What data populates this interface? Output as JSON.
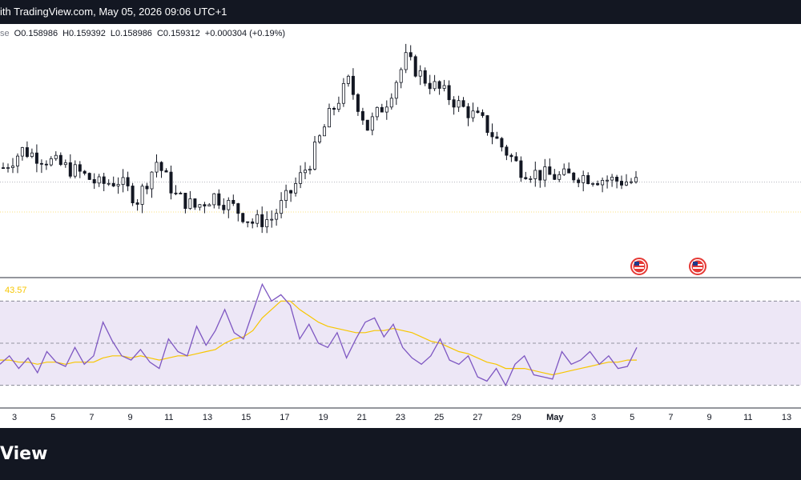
{
  "header": {
    "title": "ith TradingView.com, May 05, 2026 09:06 UTC+1"
  },
  "legend": {
    "prefix": "se",
    "open_key": "O",
    "open": "0.158986",
    "high_key": "H",
    "high": "0.159392",
    "low_key": "L",
    "low": "0.158986",
    "close_key": "C",
    "close": "0.159312",
    "change": "+0.000304 (+0.19%)"
  },
  "rsi": {
    "value_label": "43.57"
  },
  "footer": {
    "brand": "View"
  },
  "colors": {
    "up": "#131722",
    "down": "#131722",
    "rsi_line": "#7e57c2",
    "rsi_ma": "#f7c600",
    "rsi_band": "#ede7f6",
    "background": "#ffffff",
    "bar": "#131722"
  },
  "icons": [
    "us-flag-icon",
    "us-flag-icon"
  ],
  "chart_data": [
    {
      "type": "candlestick",
      "title": "",
      "ylim": [
        0.148,
        0.178
      ],
      "dates": [
        "2",
        "3",
        "4",
        "5",
        "6",
        "7",
        "8",
        "9",
        "10",
        "11",
        "12",
        "13",
        "14",
        "15",
        "16",
        "17",
        "18",
        "19",
        "20",
        "21",
        "22",
        "23",
        "24",
        "25",
        "26",
        "27",
        "28",
        "29",
        "30",
        "May",
        "2",
        "3",
        "4",
        "5"
      ],
      "close": [
        0.1612,
        0.1635,
        0.1625,
        0.1615,
        0.1605,
        0.159,
        0.1595,
        0.157,
        0.162,
        0.1575,
        0.156,
        0.1575,
        0.156,
        0.154,
        0.1545,
        0.158,
        0.162,
        0.168,
        0.1725,
        0.1665,
        0.17,
        0.1755,
        0.1728,
        0.171,
        0.169,
        0.1672,
        0.164,
        0.161,
        0.1603,
        0.16,
        0.1602,
        0.1598,
        0.1595,
        0.1593
      ],
      "x_ticks": [
        "3",
        "5",
        "7",
        "9",
        "11",
        "13",
        "15",
        "17",
        "19",
        "21",
        "23",
        "25",
        "27",
        "29",
        "May",
        "3",
        "5",
        "7",
        "9",
        "11",
        "13"
      ]
    },
    {
      "type": "line",
      "title": "",
      "ylim": [
        20,
        80
      ],
      "bands": [
        30,
        50,
        70
      ],
      "series": [
        {
          "name": "",
          "values": [
            40,
            44,
            38,
            43,
            36,
            46,
            41,
            39,
            48,
            40,
            44,
            60,
            51,
            44,
            42,
            47,
            41,
            38,
            52,
            46,
            44,
            58,
            49,
            56,
            66,
            55,
            52,
            65,
            78,
            70,
            73,
            68,
            52,
            59,
            50,
            48,
            55,
            43,
            52,
            60,
            62,
            53,
            59,
            48,
            43,
            40,
            44,
            52,
            42,
            40,
            44,
            34,
            32,
            38,
            30,
            40,
            44,
            35,
            34,
            33,
            46,
            40,
            42,
            46,
            40,
            44,
            38,
            39,
            48
          ]
        },
        {
          "name": "",
          "values": [
            42,
            42,
            41,
            41,
            40,
            41,
            41,
            40,
            41,
            41,
            41,
            43,
            44,
            44,
            43,
            44,
            43,
            42,
            43,
            44,
            44,
            45,
            46,
            47,
            50,
            52,
            53,
            56,
            62,
            66,
            70,
            70,
            66,
            63,
            60,
            58,
            57,
            56,
            55,
            55,
            56,
            56,
            57,
            56,
            55,
            53,
            51,
            50,
            48,
            46,
            45,
            43,
            41,
            40,
            38,
            38,
            38,
            37,
            36,
            35,
            36,
            37,
            38,
            39,
            40,
            41,
            41,
            42,
            42
          ]
        }
      ]
    }
  ]
}
